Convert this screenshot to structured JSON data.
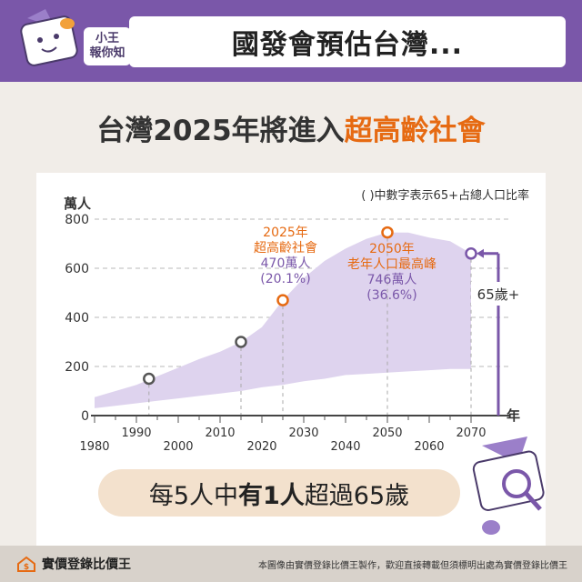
{
  "header": {
    "badge_line1": "小王",
    "badge_line2": "報你知",
    "title": "國發會預估台灣..."
  },
  "subtitle": {
    "prefix": "台灣2025年將進入",
    "highlight": "超高齡社會"
  },
  "chart_data": {
    "type": "area",
    "ylabel": "萬人",
    "xlabel": "年",
    "note": "( )中數字表示65+占總人口比率",
    "ylim": [
      0,
      800
    ],
    "xlim": [
      1980,
      2070
    ],
    "yticks": [
      0,
      200,
      400,
      600,
      800
    ],
    "xticks": [
      1980,
      1990,
      2000,
      2010,
      2020,
      2030,
      2040,
      2050,
      2060,
      2070
    ],
    "grid": true,
    "series": [
      {
        "name": "65歲+",
        "x": [
          1980,
          1985,
          1990,
          1995,
          2000,
          2005,
          2010,
          2015,
          2020,
          2025,
          2030,
          2035,
          2040,
          2045,
          2050,
          2055,
          2060,
          2065,
          2070
        ],
        "lower": [
          30,
          40,
          50,
          60,
          70,
          80,
          90,
          100,
          115,
          125,
          140,
          150,
          165,
          170,
          175,
          180,
          185,
          190,
          190
        ],
        "upper": [
          75,
          100,
          125,
          160,
          195,
          230,
          260,
          300,
          360,
          470,
          560,
          630,
          680,
          720,
          746,
          745,
          725,
          710,
          660
        ]
      }
    ],
    "markers": [
      {
        "x": 1993,
        "y": 150
      },
      {
        "x": 2015,
        "y": 300
      },
      {
        "x": 2025,
        "y": 470
      },
      {
        "x": 2050,
        "y": 746
      },
      {
        "x": 2070,
        "y": 660
      }
    ],
    "bracket_label": "65歲+",
    "annotations": [
      {
        "l1": "2025年",
        "l2": "超高齡社會",
        "l3": "470萬人",
        "l4": "(20.1%)"
      },
      {
        "l1": "2050年",
        "l2": "老年人口最高峰",
        "l3": "746萬人",
        "l4": "(36.6%)"
      }
    ]
  },
  "callout": {
    "part1": "每5人中",
    "part2": "有1人",
    "part3": "超過65歲"
  },
  "footer": {
    "brand": "實價登錄比價王",
    "note": "本圖像由實價登錄比價王製作，歡迎直接轉載但須標明出處為實價登錄比價王"
  },
  "colors": {
    "header": "#7a57a9",
    "area": "#ded3ee",
    "orange": "#e66a12",
    "purple": "#7a57a9",
    "bg": "#f1ede8"
  }
}
